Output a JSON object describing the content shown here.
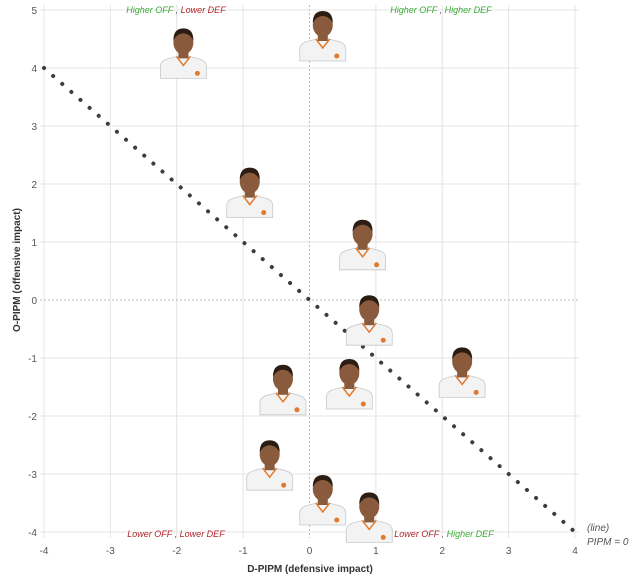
{
  "chart_data": {
    "type": "scatter",
    "xlabel": "D-PIPM (defensive impact)",
    "ylabel": "O-PIPM (offensive impact)",
    "xlim": [
      -4,
      4
    ],
    "ylim": [
      -4,
      5
    ],
    "x_ticks": [
      "-4",
      "-3",
      "-2",
      "-1",
      "0",
      "1",
      "2",
      "3",
      "4"
    ],
    "y_ticks": [
      "5",
      "4",
      "3",
      "2",
      "1",
      "0",
      "-1",
      "-2",
      "-3",
      "-4"
    ],
    "grid": true,
    "reference_line": {
      "from": [
        -4,
        4
      ],
      "to": [
        4,
        -4
      ],
      "style": "dotted",
      "label_line1": "(line)",
      "label_line2": "PIPM = 0"
    },
    "quadrants": {
      "top_left": {
        "part1": "Higher OFF",
        "sep": " , ",
        "part2": "Lower DEF"
      },
      "top_right": {
        "part1": "Higher OFF",
        "sep": " , ",
        "part2": "Higher DEF"
      },
      "bottom_left": {
        "part1": "Lower OFF",
        "sep": " , ",
        "part2": "Lower DEF"
      },
      "bottom_right": {
        "part1": "Lower OFF",
        "sep": " , ",
        "part2": "Higher DEF"
      }
    },
    "points": [
      {
        "x": -1.9,
        "y": 4.2
      },
      {
        "x": 0.2,
        "y": 4.5
      },
      {
        "x": -0.9,
        "y": 1.8
      },
      {
        "x": 0.8,
        "y": 0.9
      },
      {
        "x": 0.9,
        "y": -0.4
      },
      {
        "x": 2.3,
        "y": -1.3
      },
      {
        "x": 0.6,
        "y": -1.5
      },
      {
        "x": -0.4,
        "y": -1.6
      },
      {
        "x": -0.6,
        "y": -2.9
      },
      {
        "x": 0.2,
        "y": -3.5
      },
      {
        "x": 0.9,
        "y": -3.8
      }
    ],
    "colors": {
      "green": "#3aaa35",
      "red": "#b3262d",
      "grid": "#e4e4e4",
      "line": "#3d3d3d"
    }
  }
}
